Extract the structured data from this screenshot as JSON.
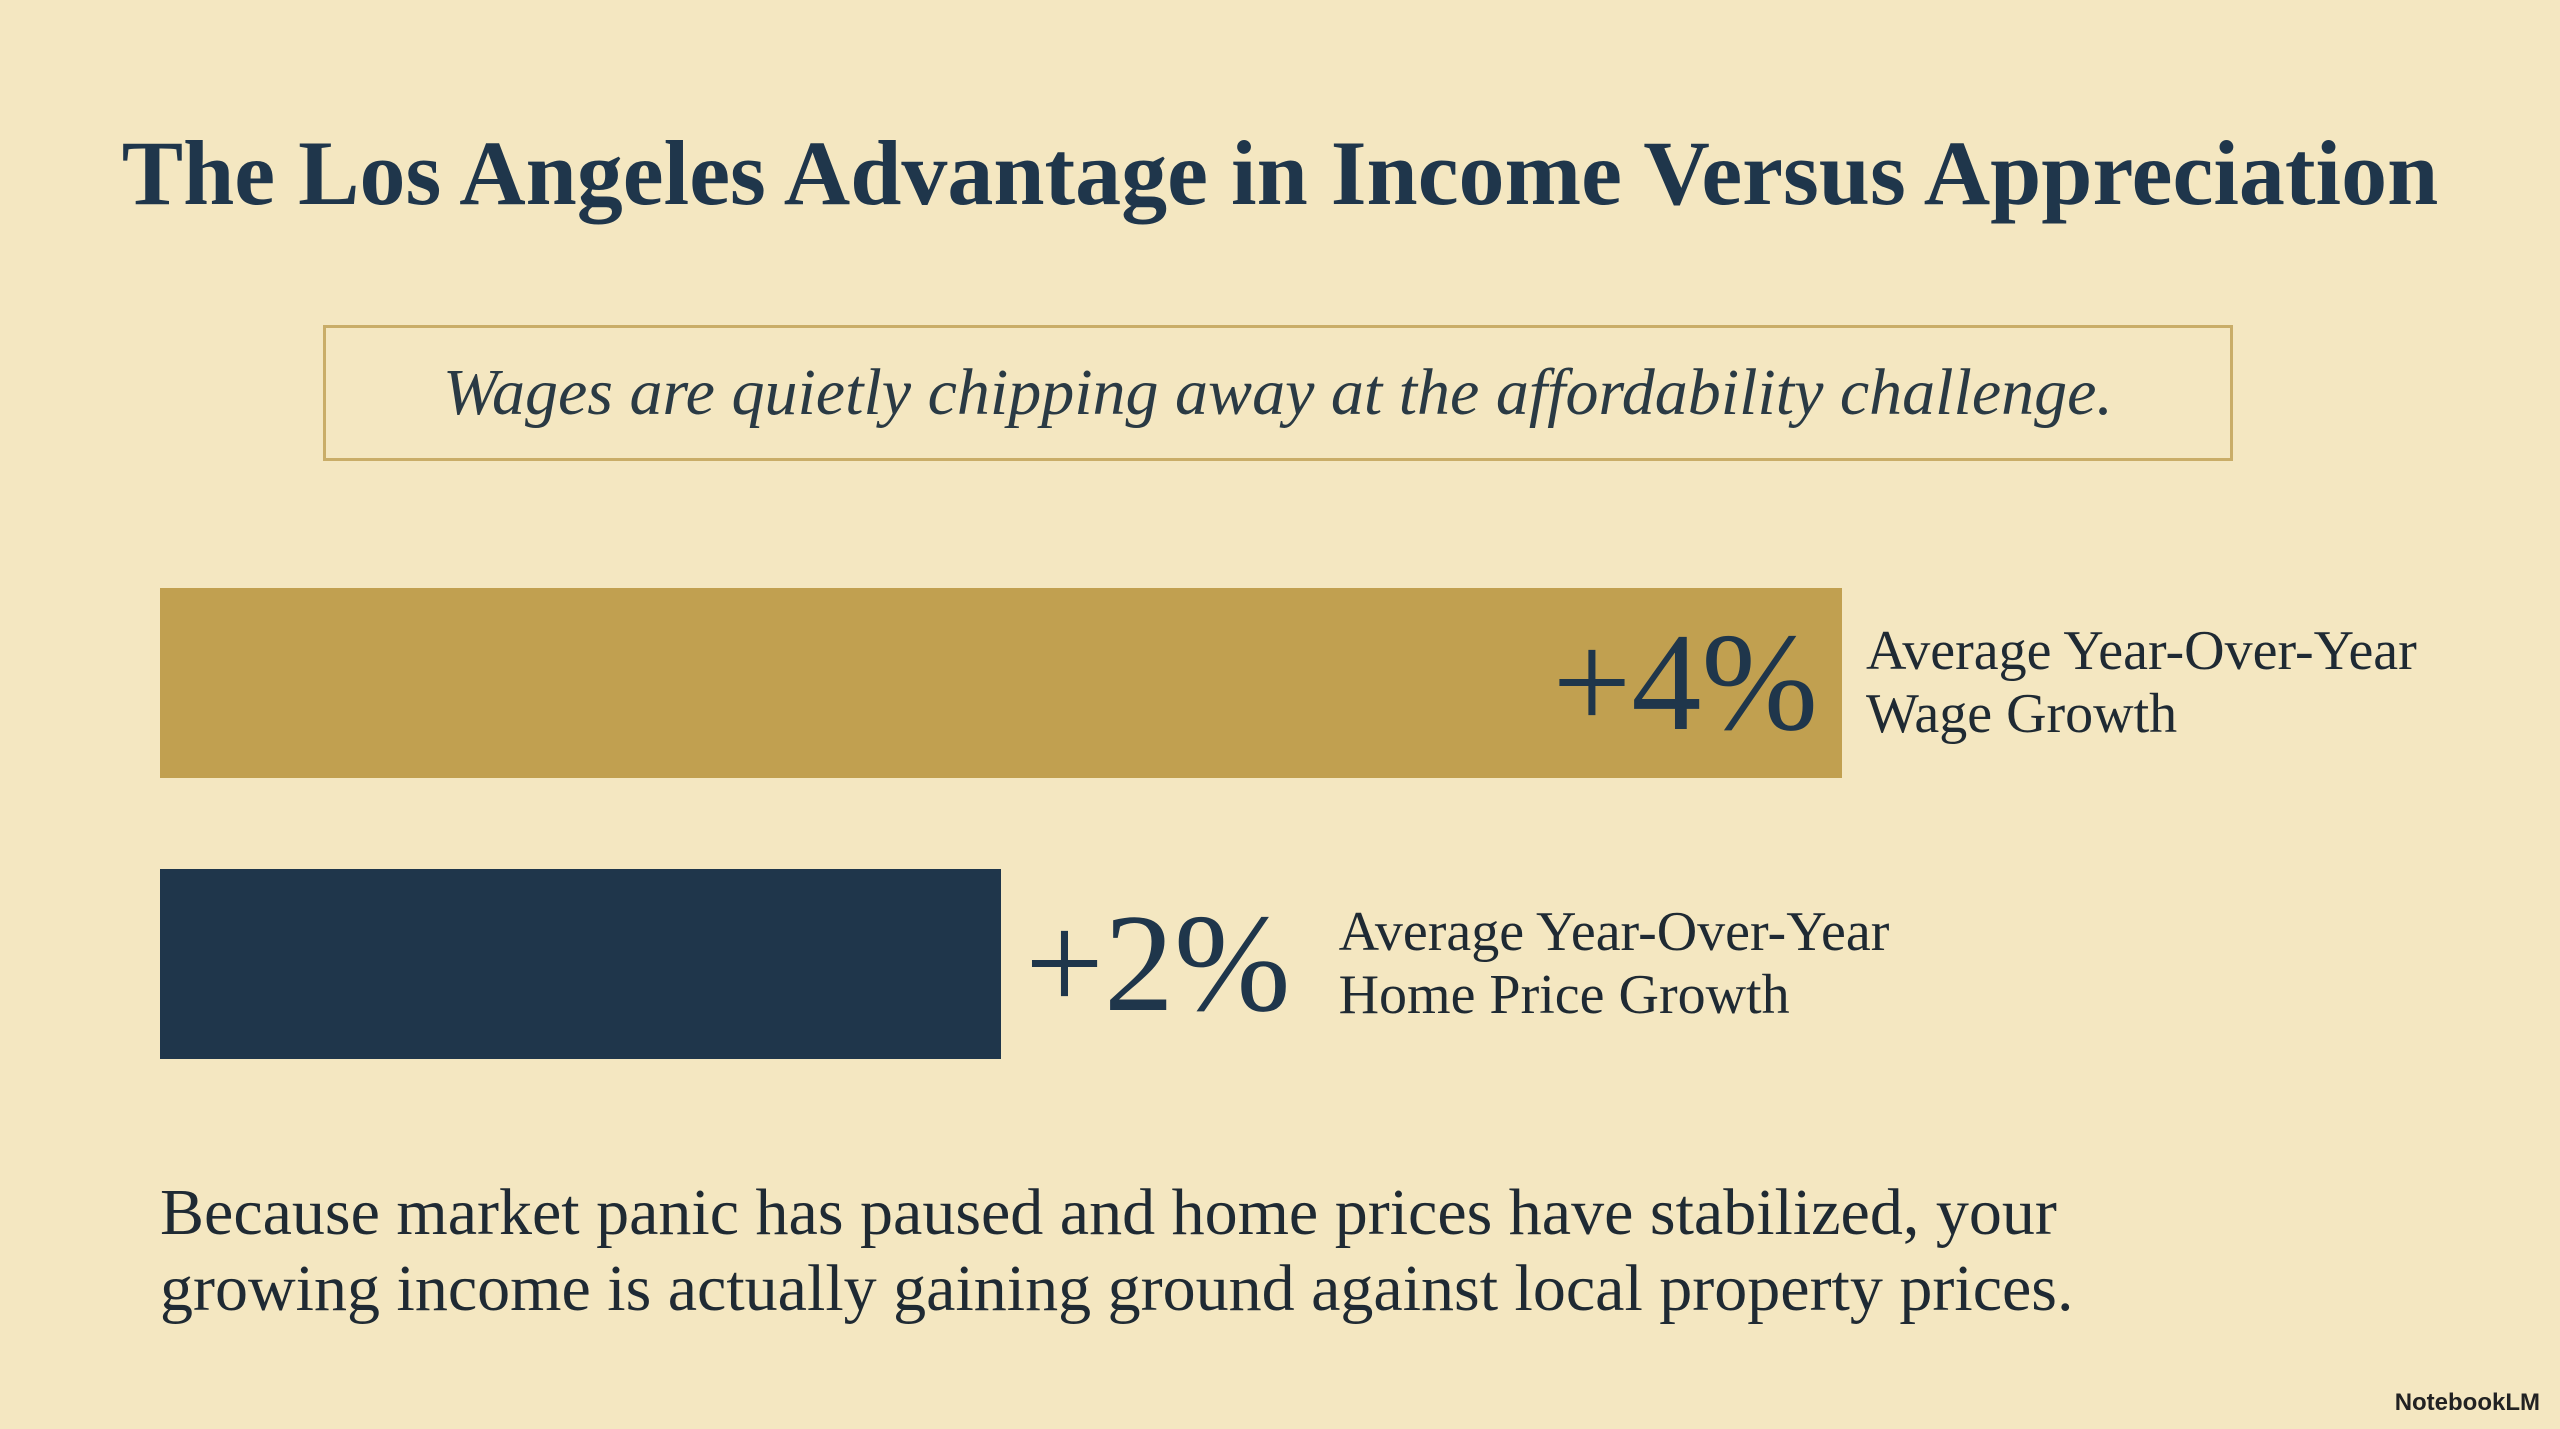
{
  "chart_data": {
    "type": "bar",
    "orientation": "horizontal",
    "title": "The Los Angeles Advantage in Income Versus Appreciation",
    "subtitle": "Wages are quietly chipping away at the affordability challenge.",
    "categories": [
      "Average Year-Over-Year Wage Growth",
      "Average Year-Over-Year Home Price Growth"
    ],
    "values": [
      4,
      2
    ],
    "value_labels": [
      "+4%",
      "+2%"
    ],
    "colors": [
      "#c1a050",
      "#1f364b"
    ],
    "footnote": "Because market panic has paused and home prices have stabilized, your growing income is actually gaining ground against local property prices."
  },
  "watermark": "NotebookLM"
}
